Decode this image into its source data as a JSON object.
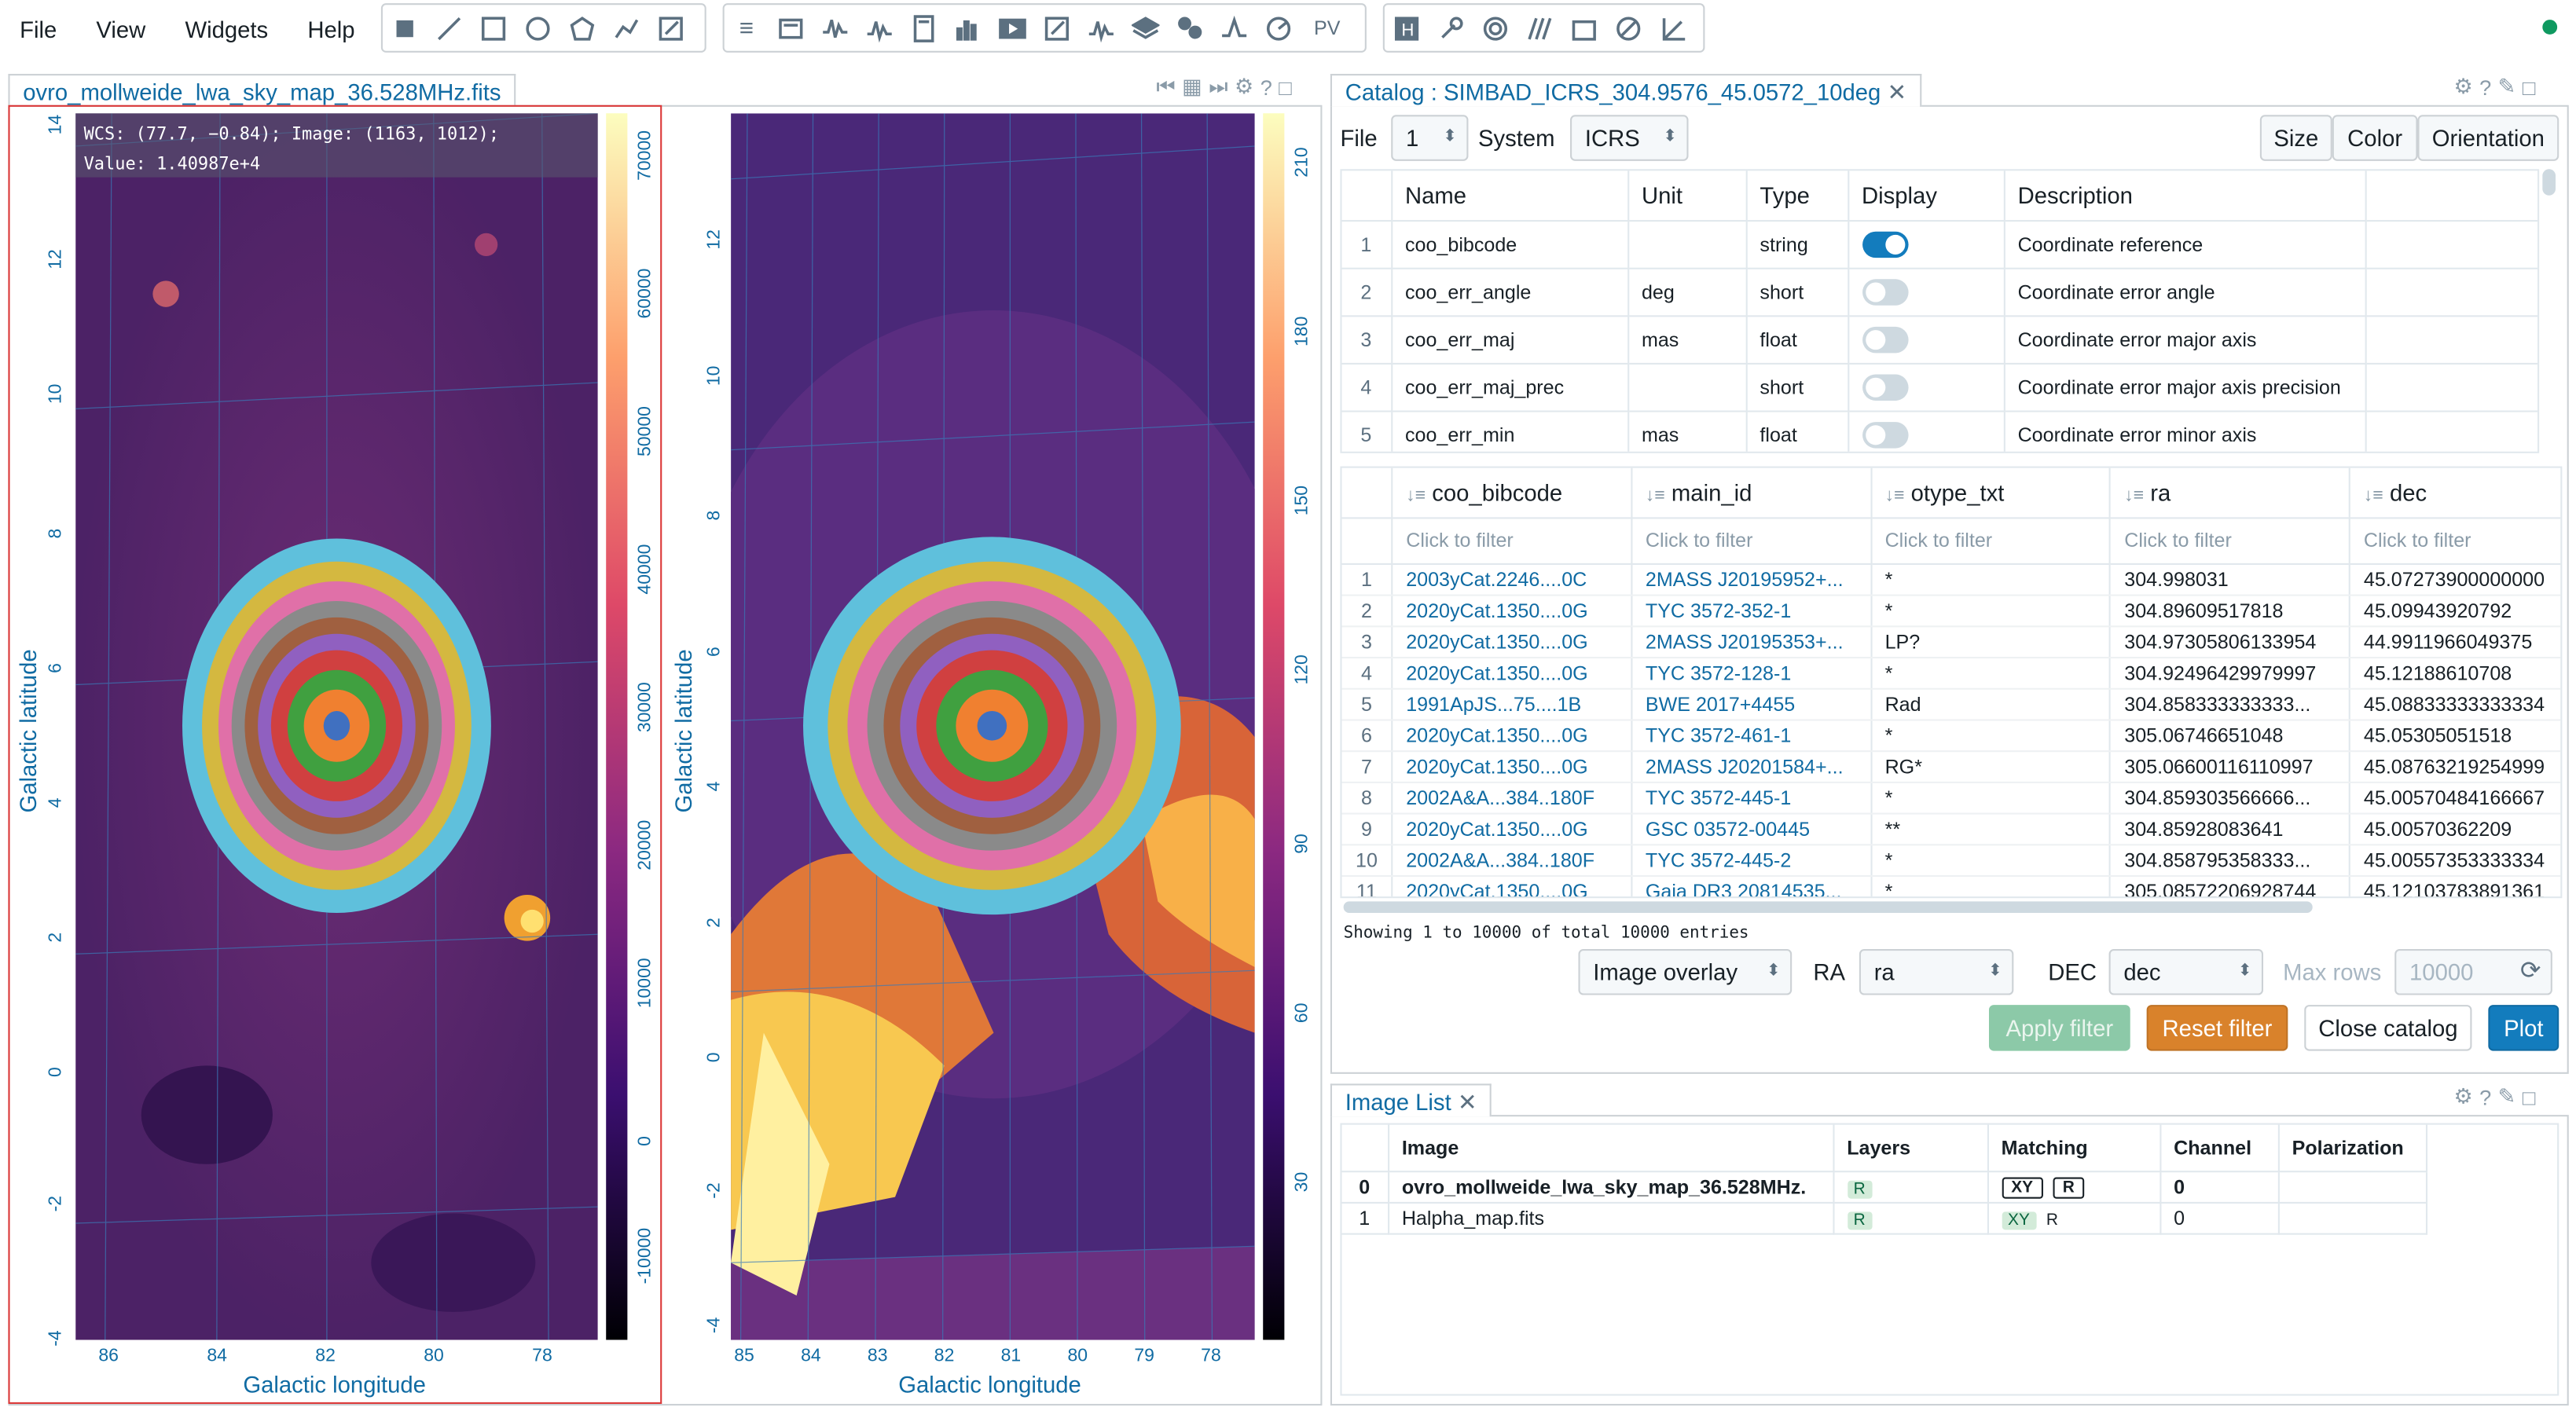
{
  "menu": [
    "File",
    "View",
    "Widgets",
    "Help"
  ],
  "toolbar": {
    "region_tools": [
      "square-icon",
      "line-icon",
      "rectangle-icon",
      "ellipse-icon",
      "polygon-icon",
      "polyline-icon",
      "edit-icon"
    ],
    "widget_tools": [
      "header-icon",
      "info-icon",
      "xy-profile-icon",
      "z-profile-icon",
      "calculator-icon",
      "histogram-icon",
      "animator-icon",
      "rendering-icon",
      "spectral-icon",
      "layers-icon",
      "catalog-icon",
      "fitting-icon",
      "vector-icon"
    ],
    "pv_label": "PV",
    "dialog_tools": [
      "h-icon",
      "wrench-icon",
      "contour-icon",
      "overlay-icon",
      "xy-icon",
      "distance-icon",
      "ruler-icon"
    ]
  },
  "image_panel": {
    "tab_title": "ovro_mollweide_lwa_sky_map_36.528MHz.fits",
    "hover_line1": "WCS: (77.7, −0.84); Image: (1163, 1012);",
    "hover_line2": "Value:  1.40987e+4",
    "xlabel": "Galactic longitude",
    "ylabel": "Galactic latitude",
    "left_xticks": [
      "86",
      "84",
      "82",
      "80",
      "78"
    ],
    "left_yticks": [
      "14",
      "12",
      "10",
      "8",
      "6",
      "4",
      "2",
      "0",
      "-2",
      "-4"
    ],
    "left_cbar_ticks": [
      "70000",
      "60000",
      "50000",
      "40000",
      "30000",
      "20000",
      "10000",
      "0",
      "-10000"
    ],
    "right_xticks": [
      "85",
      "84",
      "83",
      "82",
      "81",
      "80",
      "79",
      "78"
    ],
    "right_yticks": [
      "12",
      "10",
      "8",
      "6",
      "4",
      "2",
      "0",
      "-2",
      "-4"
    ],
    "right_cbar_ticks": [
      "210",
      "180",
      "150",
      "120",
      "90",
      "60",
      "30"
    ]
  },
  "catalog": {
    "tab_title": "Catalog : SIMBAD_ICRS_304.9576_45.0572_10deg",
    "file_label": "File",
    "file_value": "1",
    "system_label": "System",
    "system_value": "ICRS",
    "size_btn": "Size",
    "color_btn": "Color",
    "orientation_btn": "Orientation",
    "col_headers": [
      "Name",
      "Unit",
      "Type",
      "Display",
      "Description"
    ],
    "col_rows": [
      {
        "n": "1",
        "name": "coo_bibcode",
        "unit": "",
        "type": "string",
        "display": true,
        "desc": "Coordinate reference"
      },
      {
        "n": "2",
        "name": "coo_err_angle",
        "unit": "deg",
        "type": "short",
        "display": false,
        "desc": "Coordinate error angle"
      },
      {
        "n": "3",
        "name": "coo_err_maj",
        "unit": "mas",
        "type": "float",
        "display": false,
        "desc": "Coordinate error major axis"
      },
      {
        "n": "4",
        "name": "coo_err_maj_prec",
        "unit": "",
        "type": "short",
        "display": false,
        "desc": "Coordinate error major axis precision"
      },
      {
        "n": "5",
        "name": "coo_err_min",
        "unit": "mas",
        "type": "float",
        "display": false,
        "desc": "Coordinate error minor axis"
      }
    ],
    "data_headers": [
      "coo_bibcode",
      "main_id",
      "otype_txt",
      "ra",
      "dec"
    ],
    "filter_placeholder": "Click to filter",
    "data_rows": [
      [
        "1",
        "2003yCat.2246....0C",
        "2MASS J20195952+...",
        "*",
        "304.998031",
        "45.07273900000000"
      ],
      [
        "2",
        "2020yCat.1350....0G",
        "TYC 3572-352-1",
        "*",
        "304.89609517818",
        "45.09943920792"
      ],
      [
        "3",
        "2020yCat.1350....0G",
        "2MASS J20195353+...",
        "LP?",
        "304.97305806133954",
        "44.9911966049375"
      ],
      [
        "4",
        "2020yCat.1350....0G",
        "TYC 3572-128-1",
        "*",
        "304.92496429979997",
        "45.12188610708"
      ],
      [
        "5",
        "1991ApJS...75....1B",
        "BWE 2017+4455",
        "Rad",
        "304.858333333333...",
        "45.08833333333334"
      ],
      [
        "6",
        "2020yCat.1350....0G",
        "TYC 3572-461-1",
        "*",
        "305.06746651048",
        "45.05305051518"
      ],
      [
        "7",
        "2020yCat.1350....0G",
        "2MASS J20201584+...",
        "RG*",
        "305.06600116110997",
        "45.08763219254999"
      ],
      [
        "8",
        "2002A&A...384..180F",
        "TYC 3572-445-1",
        "*",
        "304.859303566666...",
        "45.00570484166667"
      ],
      [
        "9",
        "2020yCat.1350....0G",
        "GSC 03572-00445",
        "**",
        "304.85928083641",
        "45.00570362209"
      ],
      [
        "10",
        "2002A&A...384..180F",
        "TYC 3572-445-2",
        "*",
        "304.858795358333...",
        "45.00557353333334"
      ],
      [
        "11",
        "2020yCat.1350....0G",
        "Gaia DR3 20814535...",
        "*",
        "305.08572206928744",
        "45.12103783891361"
      ]
    ],
    "showing_text": "Showing 1 to 10000 of total 10000 entries",
    "overlay_value": "Image overlay",
    "ra_label": "RA",
    "ra_value": "ra",
    "dec_label": "DEC",
    "dec_value": "dec",
    "maxrows_label": "Max rows",
    "maxrows_value": "10000",
    "apply_btn": "Apply filter",
    "reset_btn": "Reset filter",
    "close_btn": "Close catalog",
    "plot_btn": "Plot"
  },
  "image_list": {
    "tab_title": "Image List",
    "headers": [
      "Image",
      "Layers",
      "Matching",
      "Channel",
      "Polarization"
    ],
    "rows": [
      {
        "n": "0",
        "image": "ovro_mollweide_lwa_sky_map_36.528MHz.",
        "layer": "R",
        "match1": "XY",
        "match2": "R",
        "channel": "0",
        "pol": ""
      },
      {
        "n": "1",
        "image": "Halpha_map.fits",
        "layer": "R",
        "match1": "XY",
        "match2": "R",
        "channel": "0",
        "pol": ""
      }
    ]
  },
  "colors": {
    "accent": "#106ba3",
    "primary": "#137cbd",
    "warning": "#d9822b",
    "success": "#0f9960"
  }
}
